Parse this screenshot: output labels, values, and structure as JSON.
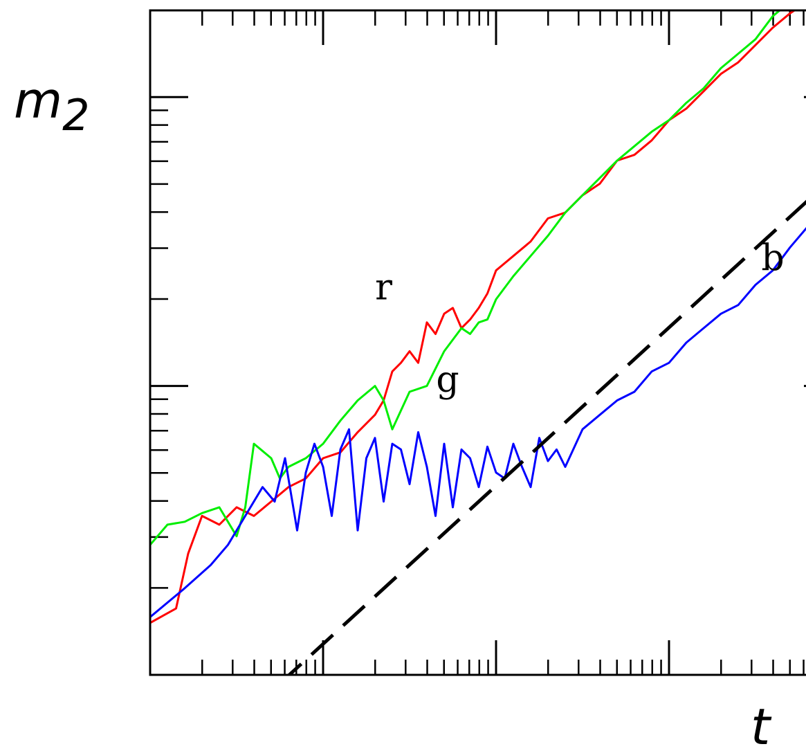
{
  "chart_data": {
    "type": "line",
    "title": "",
    "xlabel": "t",
    "ylabel": "m2",
    "ylabel_base": "m",
    "ylabel_sub": "2",
    "xscale": "log",
    "yscale": "log",
    "x_decade_range": [
      0,
      4
    ],
    "y_decade_range": [
      0,
      2.3
    ],
    "grid": false,
    "series": [
      {
        "name": "r",
        "color": "#ff0000",
        "x": [
          0.0,
          0.15,
          0.22,
          0.3,
          0.4,
          0.5,
          0.6,
          0.7,
          0.8,
          0.9,
          1.0,
          1.1,
          1.2,
          1.3,
          1.35,
          1.4,
          1.45,
          1.5,
          1.55,
          1.6,
          1.65,
          1.7,
          1.75,
          1.8,
          1.85,
          1.9,
          1.95,
          2.0,
          2.1,
          2.2,
          2.3,
          2.4,
          2.5,
          2.6,
          2.7,
          2.8,
          2.9,
          3.0,
          3.1,
          3.2,
          3.3,
          3.4,
          3.5,
          3.6,
          3.7,
          3.8,
          3.9,
          4.0
        ],
        "y": [
          0.18,
          0.23,
          0.42,
          0.55,
          0.52,
          0.58,
          0.55,
          0.6,
          0.65,
          0.68,
          0.75,
          0.77,
          0.84,
          0.9,
          0.95,
          1.05,
          1.08,
          1.12,
          1.08,
          1.22,
          1.18,
          1.25,
          1.27,
          1.2,
          1.23,
          1.27,
          1.32,
          1.4,
          1.45,
          1.5,
          1.58,
          1.6,
          1.66,
          1.7,
          1.78,
          1.8,
          1.85,
          1.92,
          1.96,
          2.02,
          2.08,
          2.12,
          2.18,
          2.24,
          2.29,
          2.33,
          2.35,
          2.38
        ]
      },
      {
        "name": "g",
        "color": "#00ee00",
        "x": [
          0.0,
          0.1,
          0.2,
          0.3,
          0.4,
          0.5,
          0.55,
          0.6,
          0.7,
          0.75,
          0.8,
          0.9,
          1.0,
          1.1,
          1.2,
          1.3,
          1.35,
          1.4,
          1.5,
          1.6,
          1.7,
          1.8,
          1.85,
          1.9,
          1.95,
          2.0,
          2.1,
          2.2,
          2.3,
          2.4,
          2.5,
          2.6,
          2.7,
          2.8,
          2.9,
          3.0,
          3.1,
          3.2,
          3.3,
          3.4,
          3.5,
          3.6,
          3.7,
          3.8,
          3.9,
          4.0
        ],
        "y": [
          0.45,
          0.52,
          0.53,
          0.56,
          0.58,
          0.48,
          0.58,
          0.8,
          0.75,
          0.68,
          0.72,
          0.75,
          0.8,
          0.88,
          0.95,
          1.0,
          0.95,
          0.85,
          0.98,
          1.0,
          1.12,
          1.2,
          1.18,
          1.22,
          1.23,
          1.3,
          1.38,
          1.45,
          1.52,
          1.6,
          1.66,
          1.72,
          1.78,
          1.83,
          1.88,
          1.92,
          1.98,
          2.03,
          2.1,
          2.15,
          2.2,
          2.28,
          2.33,
          2.38,
          2.42,
          2.48
        ]
      },
      {
        "name": "b",
        "color": "#0000ff",
        "x": [
          0.0,
          0.2,
          0.35,
          0.45,
          0.55,
          0.65,
          0.72,
          0.78,
          0.85,
          0.9,
          0.95,
          1.0,
          1.05,
          1.1,
          1.15,
          1.2,
          1.25,
          1.3,
          1.35,
          1.4,
          1.45,
          1.5,
          1.55,
          1.6,
          1.65,
          1.7,
          1.75,
          1.8,
          1.85,
          1.9,
          1.95,
          2.0,
          2.05,
          2.1,
          2.15,
          2.2,
          2.25,
          2.3,
          2.35,
          2.4,
          2.5,
          2.6,
          2.7,
          2.8,
          2.9,
          3.0,
          3.1,
          3.2,
          3.3,
          3.4,
          3.5,
          3.6,
          3.7,
          3.8,
          3.9,
          4.0
        ],
        "y": [
          0.2,
          0.3,
          0.38,
          0.45,
          0.55,
          0.65,
          0.6,
          0.75,
          0.5,
          0.7,
          0.8,
          0.72,
          0.55,
          0.78,
          0.85,
          0.5,
          0.75,
          0.82,
          0.6,
          0.8,
          0.78,
          0.66,
          0.84,
          0.72,
          0.55,
          0.8,
          0.58,
          0.78,
          0.75,
          0.65,
          0.79,
          0.7,
          0.68,
          0.8,
          0.72,
          0.65,
          0.82,
          0.74,
          0.78,
          0.72,
          0.85,
          0.9,
          0.95,
          0.98,
          1.05,
          1.08,
          1.15,
          1.2,
          1.25,
          1.28,
          1.35,
          1.4,
          1.48,
          1.55,
          1.68,
          1.78
        ]
      },
      {
        "name": "",
        "style": "dashed",
        "color": "#000000",
        "x": [
          0.75,
          4.0
        ],
        "y": [
          -0.03,
          1.75
        ]
      }
    ],
    "annotations": [
      {
        "text": "r",
        "series": "r",
        "x": 1.35,
        "y": 1.3
      },
      {
        "text": "g",
        "series": "g",
        "x": 1.72,
        "y": 0.98
      },
      {
        "text": "b",
        "series": "b",
        "x": 3.6,
        "y": 1.4
      }
    ]
  }
}
